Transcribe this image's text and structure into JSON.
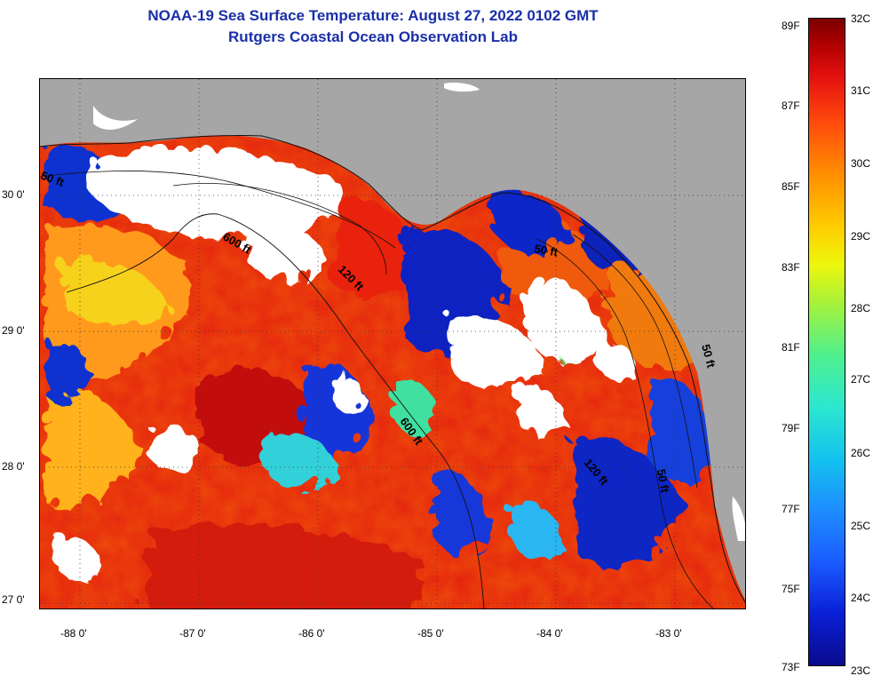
{
  "title": {
    "line1": "NOAA-19 Sea Surface Temperature:  August 27, 2022 0102 GMT",
    "line2": "Rutgers Coastal Ocean Observation Lab"
  },
  "map": {
    "x_axis_labels": [
      "-88 0'",
      "-87 0'",
      "-86 0'",
      "-85 0'",
      "-84 0'",
      "-83 0'"
    ],
    "y_axis_labels": [
      "30 0'",
      "29 0'",
      "28 0'",
      "27 0'"
    ],
    "contour_labels": [
      "50 ft",
      "600 ft",
      "120 ft",
      "600 ft",
      "50 ft",
      "120 ft",
      "50 ft",
      "50 ft"
    ]
  },
  "colorbar": {
    "fahrenheit_labels": [
      "89F",
      "87F",
      "85F",
      "83F",
      "81F",
      "79F",
      "77F",
      "75F",
      "73F"
    ],
    "celsius_labels": [
      "32C",
      "31C",
      "30C",
      "29C",
      "28C",
      "27C",
      "26C",
      "25C",
      "24C",
      "23C"
    ]
  },
  "colors": {
    "title": "#1a2fa8",
    "land": "#a6a6a6",
    "cloud": "#ffffff",
    "warm": "#e6220f",
    "cold": "#0a1ec8"
  }
}
